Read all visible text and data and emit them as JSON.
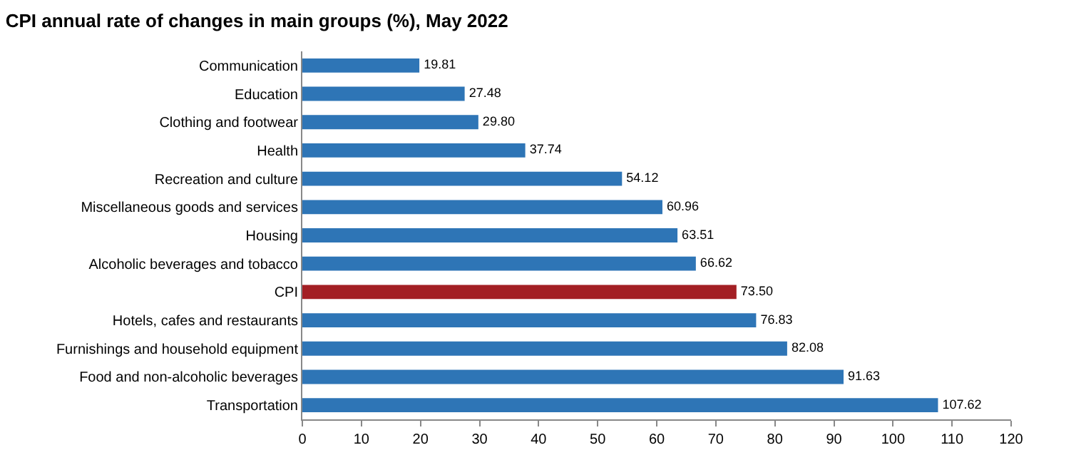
{
  "chart_data": {
    "type": "bar",
    "orientation": "horizontal",
    "title": "CPI annual rate of changes in main groups (%), May 2022",
    "categories": [
      "Communication",
      "Education",
      "Clothing and footwear",
      "Health",
      "Recreation and culture",
      "Miscellaneous goods and services",
      "Housing",
      "Alcoholic beverages and tobacco",
      "CPI",
      "Hotels, cafes and restaurants",
      "Furnishings and household equipment",
      "Food and non-alcoholic beverages",
      "Transportation"
    ],
    "values": [
      19.81,
      27.48,
      29.8,
      37.74,
      54.12,
      60.96,
      63.51,
      66.62,
      73.5,
      76.83,
      82.08,
      91.63,
      107.62
    ],
    "value_labels": [
      "19.81",
      "27.48",
      "29.80",
      "37.74",
      "54.12",
      "60.96",
      "63.51",
      "66.62",
      "73.50",
      "76.83",
      "82.08",
      "91.63",
      "107.62"
    ],
    "colors": [
      "#2e75b6",
      "#2e75b6",
      "#2e75b6",
      "#2e75b6",
      "#2e75b6",
      "#2e75b6",
      "#2e75b6",
      "#2e75b6",
      "#a31f24",
      "#2e75b6",
      "#2e75b6",
      "#2e75b6",
      "#2e75b6"
    ],
    "xlim": [
      0,
      120
    ],
    "xticks": [
      0,
      10,
      20,
      30,
      40,
      50,
      60,
      70,
      80,
      90,
      100,
      110,
      120
    ]
  }
}
